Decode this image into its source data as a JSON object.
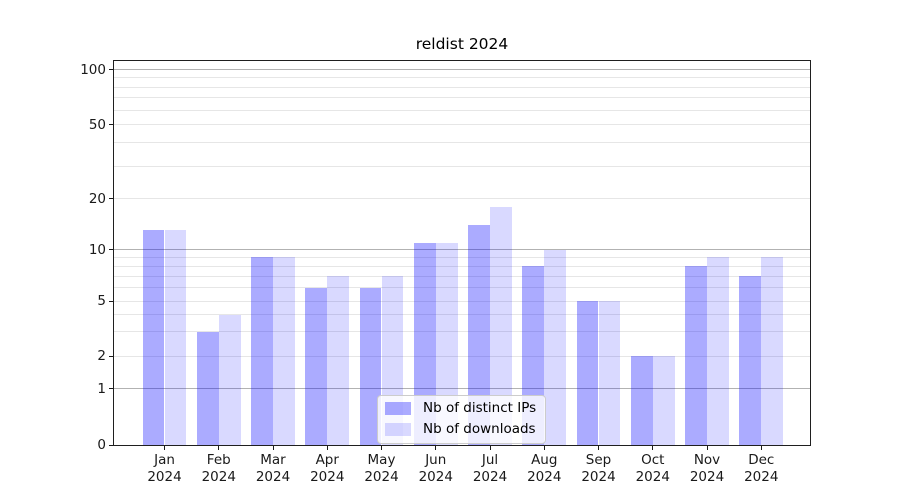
{
  "figure": {
    "title": "reldist 2024"
  },
  "chart_data": {
    "type": "bar",
    "title": "reldist 2024",
    "xlabel": "",
    "ylabel": "",
    "categories": [
      "Jan",
      "Feb",
      "Mar",
      "Apr",
      "May",
      "Jun",
      "Jul",
      "Aug",
      "Sep",
      "Oct",
      "Nov",
      "Dec"
    ],
    "category_year": "2024",
    "series": [
      {
        "name": "Nb of distinct IPs",
        "color": "rgba(0,0,255,0.33)",
        "values": [
          13,
          3,
          9,
          6,
          6,
          11,
          14,
          8,
          5,
          2,
          8,
          7
        ]
      },
      {
        "name": "Nb of downloads",
        "color": "rgba(0,0,255,0.15)",
        "values": [
          13,
          4,
          9,
          7,
          7,
          11,
          18,
          10,
          5,
          2,
          9,
          9
        ]
      }
    ],
    "yscale": "symlog",
    "ylim": [
      0,
      100
    ],
    "yticks": [
      {
        "value": 0,
        "label": "0"
      },
      {
        "value": 1,
        "label": "1"
      },
      {
        "value": 2,
        "label": "2"
      },
      {
        "value": 5,
        "label": "5"
      },
      {
        "value": 10,
        "label": "10"
      },
      {
        "value": 20,
        "label": "20"
      },
      {
        "value": 50,
        "label": "50"
      },
      {
        "value": 100,
        "label": "100"
      }
    ],
    "major_gridlines": [
      1,
      10,
      100
    ],
    "minor_gridlines": [
      2,
      3,
      4,
      5,
      6,
      7,
      8,
      9,
      20,
      30,
      40,
      50,
      60,
      70,
      80,
      90
    ],
    "grid": true,
    "legend_position": "lower center",
    "scale_anchors": [
      [
        0,
        0
      ],
      [
        1,
        0.1462
      ],
      [
        2,
        0.2311
      ],
      [
        5,
        0.3747
      ],
      [
        10,
        0.5091
      ],
      [
        20,
        0.641
      ],
      [
        50,
        0.8342
      ],
      [
        100,
        0.9778
      ]
    ]
  }
}
